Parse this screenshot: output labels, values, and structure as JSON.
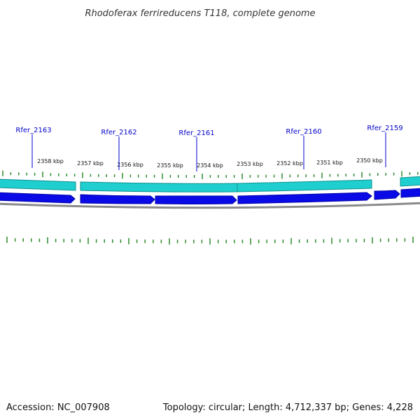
{
  "title": "Rhodoferax ferrireducens T118, complete genome",
  "footer": {
    "accession": "Accession: NC_007908",
    "summary": "Topology: circular; Length: 4,712,337 bp; Genes: 4,228"
  },
  "colors": {
    "gene_label": "#0000cc",
    "gene_arrow": "#0a0ae6",
    "gene_arrow_dark": "#0000a8",
    "cds_track": "#1fcfcf",
    "cds_track_dark": "#0e8f8f",
    "backbone": "#8a8a8a",
    "tick": "#2e8b2e"
  },
  "genes": [
    {
      "name": "Rfer_2163"
    },
    {
      "name": "Rfer_2162"
    },
    {
      "name": "Rfer_2161"
    },
    {
      "name": "Rfer_2160"
    },
    {
      "name": "Rfer_2159"
    }
  ],
  "scale": {
    "labels": [
      "2358 kbp",
      "2357 kbp",
      "2356 kbp",
      "2355 kbp",
      "2354 kbp",
      "2353 kbp",
      "2352 kbp",
      "2351 kbp",
      "2350 kbp"
    ]
  }
}
